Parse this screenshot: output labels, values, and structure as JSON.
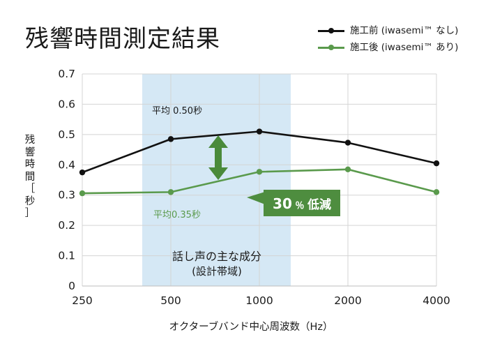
{
  "chart_data": {
    "type": "line",
    "title": "残響時間測定結果",
    "categories": [
      "250",
      "500",
      "1000",
      "2000",
      "4000"
    ],
    "series": [
      {
        "name": "施工前 (iwasemi™ なし)",
        "values": [
          0.375,
          0.485,
          0.51,
          0.473,
          0.405
        ],
        "color": "#111111"
      },
      {
        "name": "施工後 (iwasemi™ あり)",
        "values": [
          0.306,
          0.31,
          0.377,
          0.385,
          0.31
        ],
        "color": "#5a9a4c"
      }
    ],
    "xlabel": "オクターブバンド中心周波数（Hz）",
    "ylabel": [
      "残",
      "響",
      "時",
      "間",
      "［",
      "秒",
      "］"
    ],
    "ylim": [
      0,
      0.7
    ],
    "yticks": [
      "0",
      "0.1",
      "0.2",
      "0.3",
      "0.4",
      "0.5",
      "0.6",
      "0.7"
    ],
    "grid": true,
    "legend_position": "top-right",
    "highlight_band": {
      "from": "≈350",
      "to": "≈1300",
      "color": "#d5e8f5"
    },
    "annotations": {
      "avg_before": "平均 0.50秒",
      "avg_after": "平均0.35秒",
      "reduction_value": "30",
      "reduction_unit": "％",
      "reduction_text": "低減",
      "band_label_line1": "話し声の主な成分",
      "band_label_line2": "(設計帯域)"
    },
    "colors": {
      "accent_green": "#4e8d3f",
      "arrow_green": "#4a8a3a"
    }
  }
}
